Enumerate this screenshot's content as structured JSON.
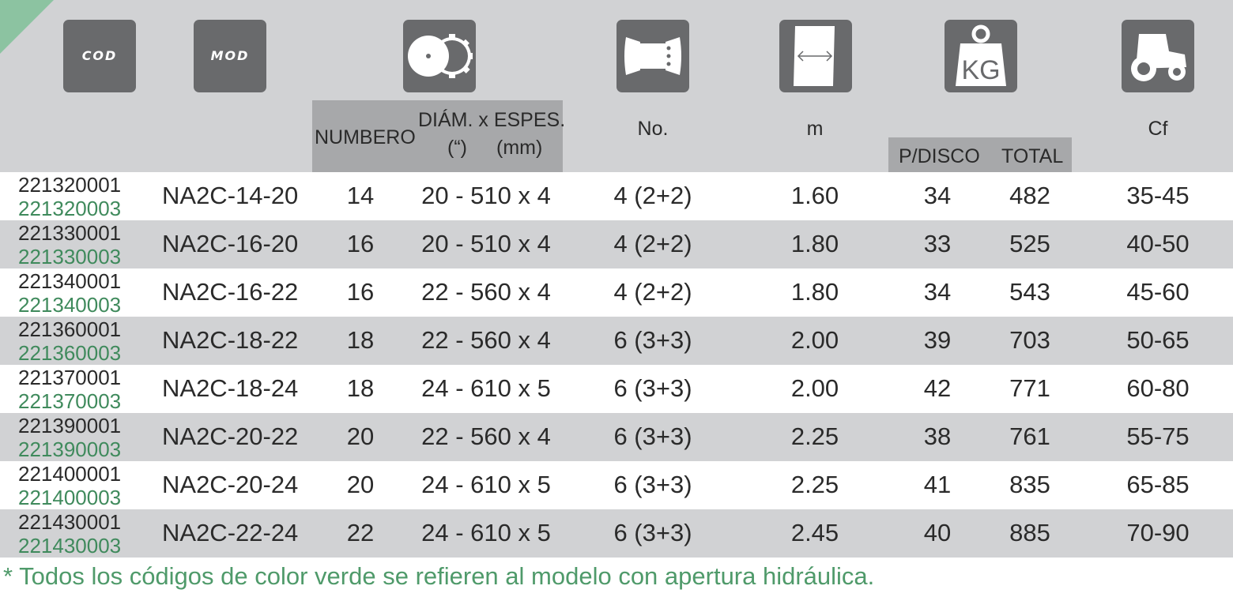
{
  "header": {
    "icons": [
      {
        "name": "cod-icon",
        "text": "COD"
      },
      {
        "name": "mod-icon",
        "text": "MOD"
      },
      {
        "name": "disc-icon"
      },
      {
        "name": "bearing-icon"
      },
      {
        "name": "width-icon"
      },
      {
        "name": "kg-weight-icon",
        "text": "KG"
      },
      {
        "name": "tractor-icon"
      }
    ],
    "numbero": "NUMBERO",
    "diam_line1": "DIÁM. x ESPES.",
    "diam_line2a": "(“)",
    "diam_line2b": "(mm)",
    "no": "No.",
    "m": "m",
    "p_disco": "P/DISCO",
    "total": "TOTAL",
    "cf": "Cf",
    "colors": {
      "header_bg": "#d1d2d4",
      "icon_bg": "#696a6c",
      "strip_bg": "#a7a8aa",
      "green": "#3f8a5c"
    }
  },
  "rows": [
    {
      "cod": "221320001",
      "cod_hyd": "221320003",
      "mod": "NA2C-14-20",
      "num": "14",
      "diam": "20 - 510 x 4",
      "no": "4 (2+2)",
      "m": "1.60",
      "p_disco": "34",
      "total": "482",
      "cf": "35-45"
    },
    {
      "cod": "221330001",
      "cod_hyd": "221330003",
      "mod": "NA2C-16-20",
      "num": "16",
      "diam": "20 - 510 x 4",
      "no": "4 (2+2)",
      "m": "1.80",
      "p_disco": "33",
      "total": "525",
      "cf": "40-50"
    },
    {
      "cod": "221340001",
      "cod_hyd": "221340003",
      "mod": "NA2C-16-22",
      "num": "16",
      "diam": "22 - 560 x 4",
      "no": "4 (2+2)",
      "m": "1.80",
      "p_disco": "34",
      "total": "543",
      "cf": "45-60"
    },
    {
      "cod": "221360001",
      "cod_hyd": "221360003",
      "mod": "NA2C-18-22",
      "num": "18",
      "diam": "22 - 560 x 4",
      "no": "6 (3+3)",
      "m": "2.00",
      "p_disco": "39",
      "total": "703",
      "cf": "50-65"
    },
    {
      "cod": "221370001",
      "cod_hyd": "221370003",
      "mod": "NA2C-18-24",
      "num": "18",
      "diam": "24 - 610 x 5",
      "no": "6 (3+3)",
      "m": "2.00",
      "p_disco": "42",
      "total": "771",
      "cf": "60-80"
    },
    {
      "cod": "221390001",
      "cod_hyd": "221390003",
      "mod": "NA2C-20-22",
      "num": "20",
      "diam": "22 - 560 x 4",
      "no": "6 (3+3)",
      "m": "2.25",
      "p_disco": "38",
      "total": "761",
      "cf": "55-75"
    },
    {
      "cod": "221400001",
      "cod_hyd": "221400003",
      "mod": "NA2C-20-24",
      "num": "20",
      "diam": "24 - 610 x 5",
      "no": "6 (3+3)",
      "m": "2.25",
      "p_disco": "41",
      "total": "835",
      "cf": "65-85"
    },
    {
      "cod": "221430001",
      "cod_hyd": "221430003",
      "mod": "NA2C-22-24",
      "num": "22",
      "diam": "24 - 610 x 5",
      "no": "6 (3+3)",
      "m": "2.45",
      "p_disco": "40",
      "total": "885",
      "cf": "70-90"
    }
  ],
  "footnote": "* Todos los códigos de color verde se refieren al modelo con apertura hidráulica."
}
